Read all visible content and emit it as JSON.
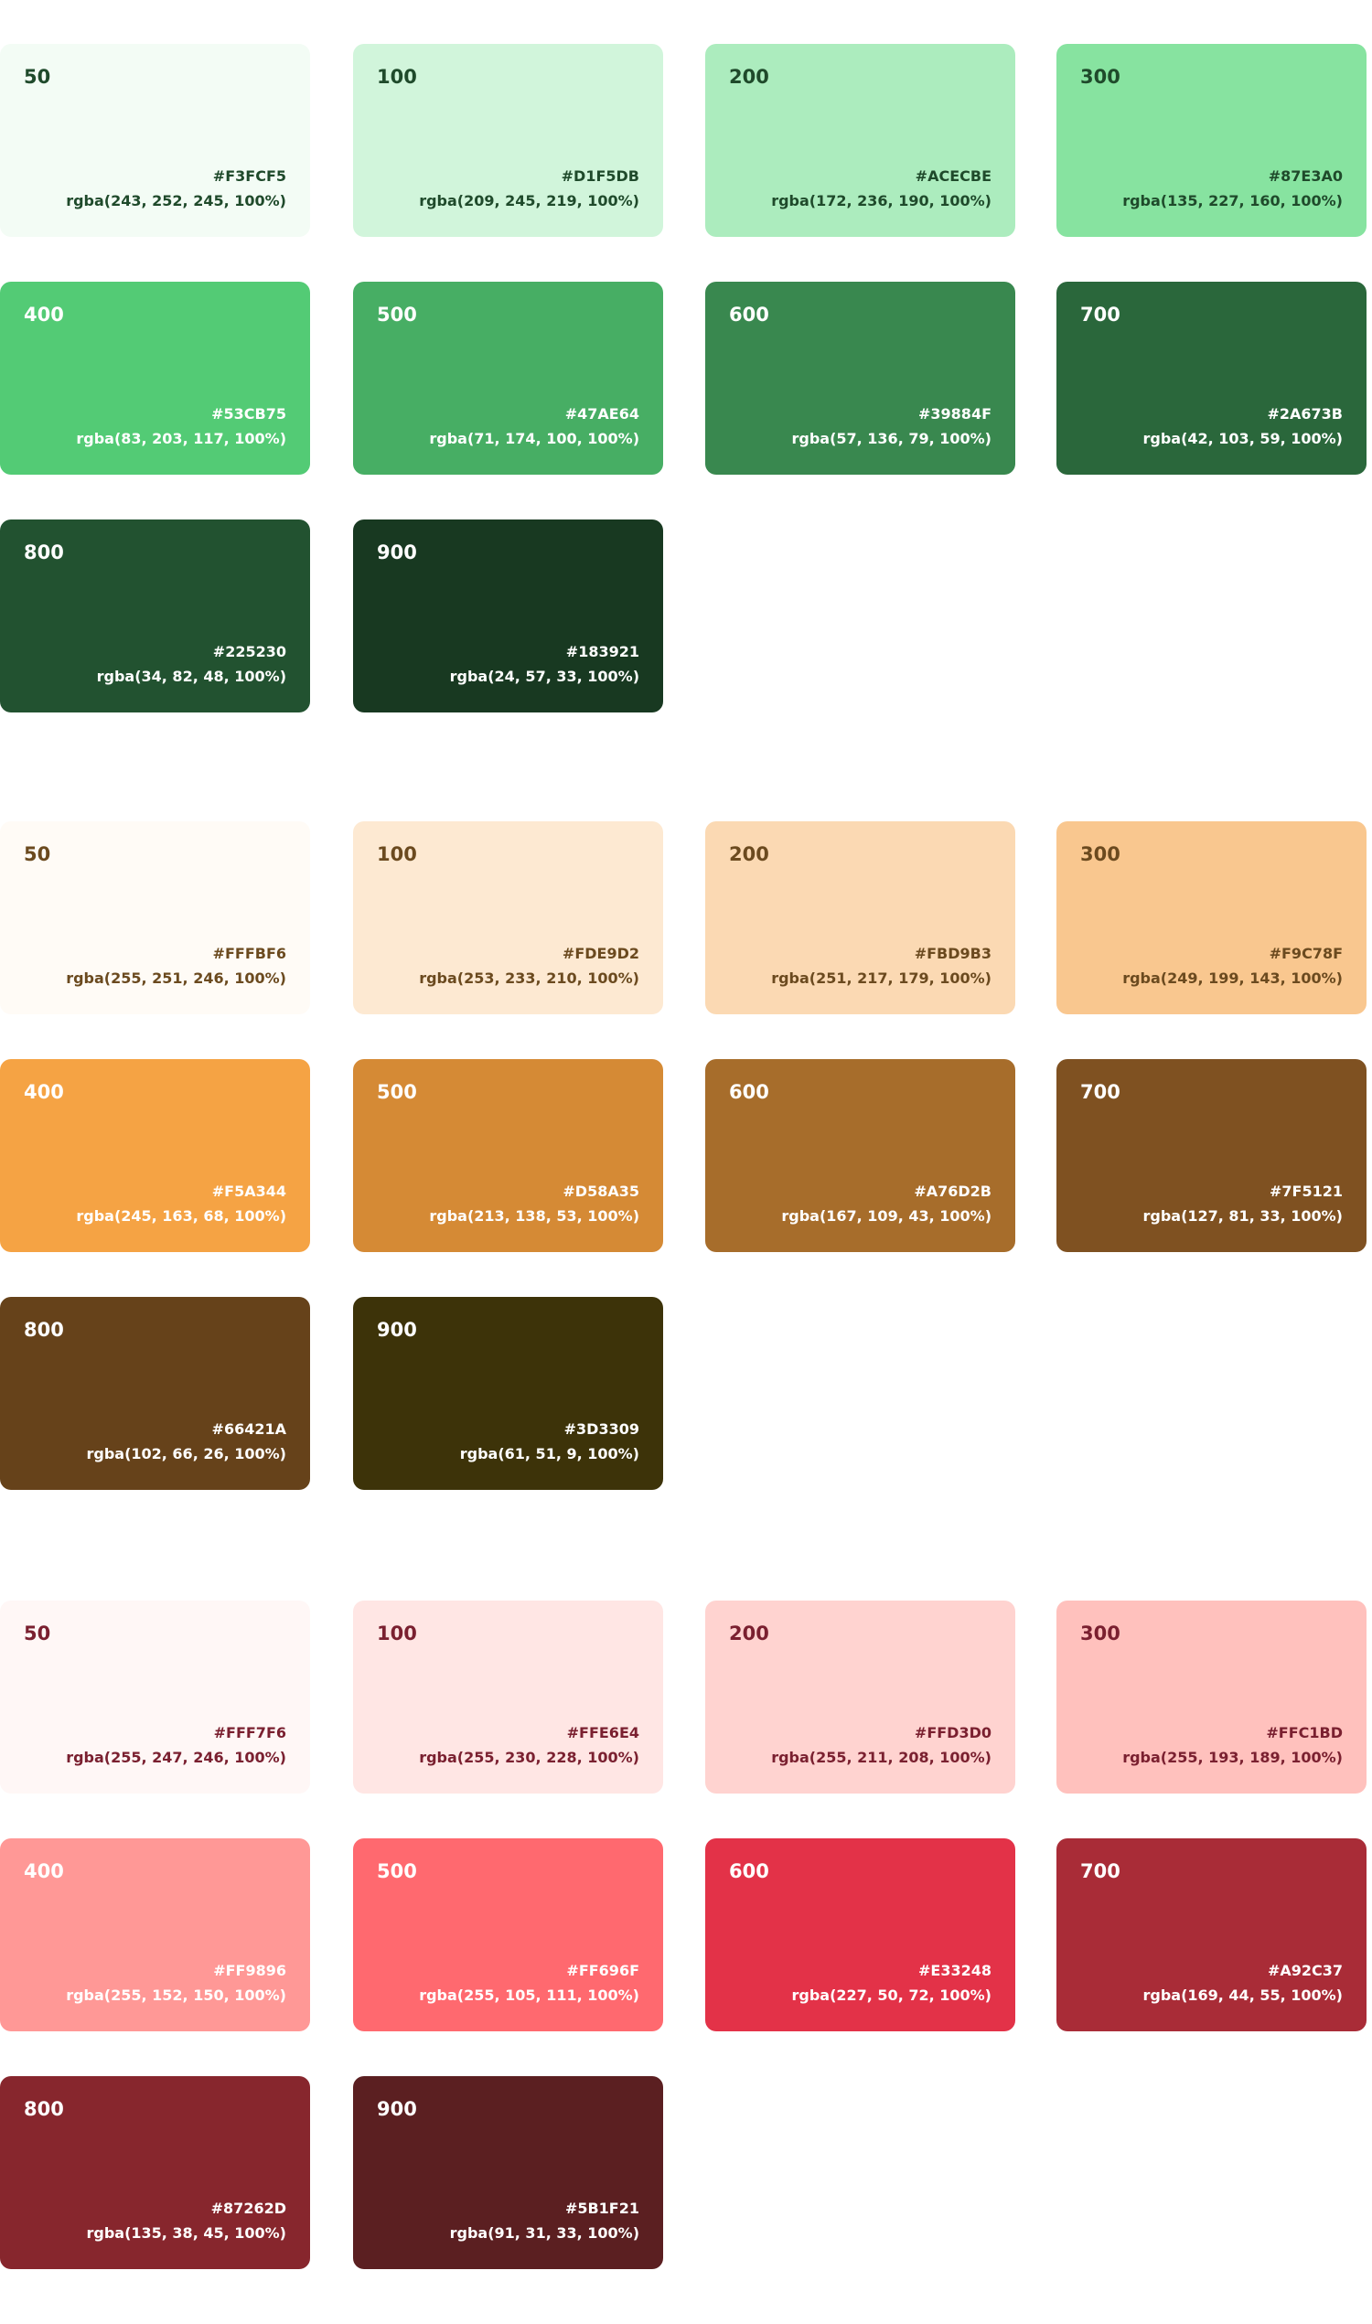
{
  "palettes": [
    {
      "swatches": [
        {
          "label": "50",
          "hex": "#F3FCF5",
          "rgba": "rgba(243, 252, 245, 100%)"
        },
        {
          "label": "100",
          "hex": "#D1F5DB",
          "rgba": "rgba(209, 245, 219, 100%)"
        },
        {
          "label": "200",
          "hex": "#ACECBE",
          "rgba": "rgba(172, 236, 190, 100%)"
        },
        {
          "label": "300",
          "hex": "#87E3A0",
          "rgba": "rgba(135, 227, 160, 100%)"
        },
        {
          "label": "400",
          "hex": "#53CB75",
          "rgba": "rgba(83, 203, 117, 100%)"
        },
        {
          "label": "500",
          "hex": "#47AE64",
          "rgba": "rgba(71, 174, 100, 100%)"
        },
        {
          "label": "600",
          "hex": "#39884F",
          "rgba": "rgba(57, 136, 79, 100%)"
        },
        {
          "label": "700",
          "hex": "#2A673B",
          "rgba": "rgba(42, 103, 59, 100%)"
        },
        {
          "label": "800",
          "hex": "#225230",
          "rgba": "rgba(34, 82, 48, 100%)"
        },
        {
          "label": "900",
          "hex": "#183921",
          "rgba": "rgba(24, 57, 33, 100%)"
        }
      ]
    },
    {
      "swatches": [
        {
          "label": "50",
          "hex": "#FFFBF6",
          "rgba": "rgba(255, 251, 246, 100%)"
        },
        {
          "label": "100",
          "hex": "#FDE9D2",
          "rgba": "rgba(253, 233, 210, 100%)"
        },
        {
          "label": "200",
          "hex": "#FBD9B3",
          "rgba": "rgba(251, 217, 179, 100%)"
        },
        {
          "label": "300",
          "hex": "#F9C78F",
          "rgba": "rgba(249, 199, 143, 100%)"
        },
        {
          "label": "400",
          "hex": "#F5A344",
          "rgba": "rgba(245, 163, 68, 100%)"
        },
        {
          "label": "500",
          "hex": "#D58A35",
          "rgba": "rgba(213, 138, 53, 100%)"
        },
        {
          "label": "600",
          "hex": "#A76D2B",
          "rgba": "rgba(167, 109, 43, 100%)"
        },
        {
          "label": "700",
          "hex": "#7F5121",
          "rgba": "rgba(127, 81, 33, 100%)"
        },
        {
          "label": "800",
          "hex": "#66421A",
          "rgba": "rgba(102, 66, 26, 100%)"
        },
        {
          "label": "900",
          "hex": "#3D3309",
          "rgba": "rgba(61, 51, 9, 100%)"
        }
      ]
    },
    {
      "swatches": [
        {
          "label": "50",
          "hex": "#FFF7F6",
          "rgba": "rgba(255, 247, 246, 100%)"
        },
        {
          "label": "100",
          "hex": "#FFE6E4",
          "rgba": "rgba(255, 230, 228, 100%)"
        },
        {
          "label": "200",
          "hex": "#FFD3D0",
          "rgba": "rgba(255, 211, 208, 100%)"
        },
        {
          "label": "300",
          "hex": "#FFC1BD",
          "rgba": "rgba(255, 193, 189, 100%)"
        },
        {
          "label": "400",
          "hex": "#FF9896",
          "rgba": "rgba(255, 152, 150, 100%)"
        },
        {
          "label": "500",
          "hex": "#FF696F",
          "rgba": "rgba(255, 105, 111, 100%)"
        },
        {
          "label": "600",
          "hex": "#E33248",
          "rgba": "rgba(227, 50, 72, 100%)"
        },
        {
          "label": "700",
          "hex": "#A92C37",
          "rgba": "rgba(169, 44, 55, 100%)"
        },
        {
          "label": "800",
          "hex": "#87262D",
          "rgba": "rgba(135, 38, 45, 100%)"
        },
        {
          "label": "900",
          "hex": "#5B1F21",
          "rgba": "rgba(91, 31, 33, 100%)"
        }
      ]
    }
  ]
}
